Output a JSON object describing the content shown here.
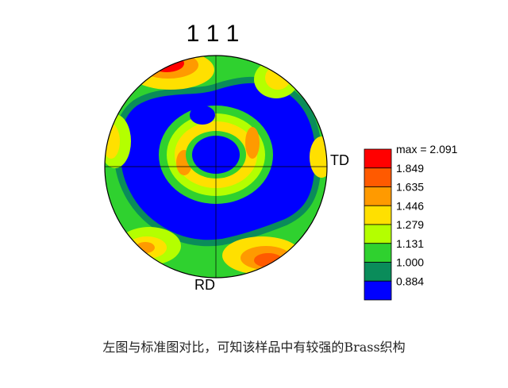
{
  "chart_data": {
    "type": "heatmap",
    "title": "1 1 1",
    "xlabel": "TD",
    "ylabel": "RD",
    "legend": {
      "placement": "right",
      "max_label": "max = 2.091",
      "levels": [
        {
          "value": "1.849",
          "color": "#ff0000"
        },
        {
          "value": "1.635",
          "color": "#ff5a00"
        },
        {
          "value": "1.446",
          "color": "#ff9a00"
        },
        {
          "value": "1.279",
          "color": "#ffe000"
        },
        {
          "value": "1.131",
          "color": "#b4ff00"
        },
        {
          "value": "1.000",
          "color": "#2fd12f"
        },
        {
          "value": "0.884",
          "color": "#0a8c5a"
        },
        {
          "value": "",
          "color": "#0000ff"
        }
      ]
    }
  },
  "caption": "左图与标准图对比，可知该样品中有较强的Brass织构"
}
